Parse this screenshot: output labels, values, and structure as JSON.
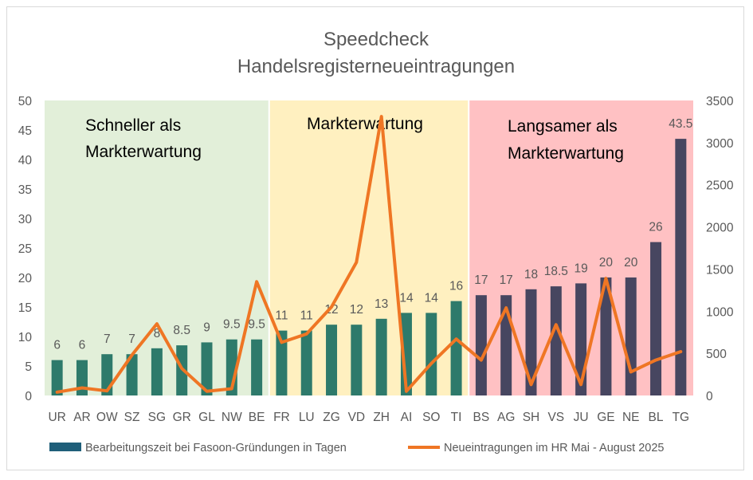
{
  "chart_data": {
    "type": "bar",
    "title": [
      "Speedcheck",
      "Handelsregisterneueintragungen"
    ],
    "categories": [
      "UR",
      "AR",
      "OW",
      "SZ",
      "SG",
      "GR",
      "GL",
      "NW",
      "BE",
      "FR",
      "LU",
      "ZG",
      "VD",
      "ZH",
      "AI",
      "SO",
      "TI",
      "BS",
      "AG",
      "SH",
      "VS",
      "JU",
      "GE",
      "NE",
      "BL",
      "TG"
    ],
    "y_left": {
      "min": 0,
      "max": 50,
      "ticks": [
        0,
        5,
        10,
        15,
        20,
        25,
        30,
        35,
        40,
        45,
        50
      ]
    },
    "y_right": {
      "min": 0,
      "max": 3500,
      "ticks": [
        0,
        500,
        1000,
        1500,
        2000,
        2500,
        3000,
        3500
      ]
    },
    "grid": false,
    "legend_position": "bottom",
    "series": [
      {
        "name": "Bearbeitungszeit bei Fasoon-Gründungen in Tagen",
        "type": "bar",
        "axis": "left",
        "values": [
          6,
          6,
          7,
          7,
          8,
          8.5,
          9,
          9.5,
          9.5,
          11,
          11,
          12,
          12,
          13,
          14,
          14,
          16,
          17,
          17,
          18,
          18.5,
          19,
          20,
          20,
          26,
          43.5
        ],
        "labels": [
          "6",
          "6",
          "7",
          "7",
          "8",
          "8.5",
          "9",
          "9.5",
          "9.5",
          "11",
          "11",
          "12",
          "12",
          "13",
          "14",
          "14",
          "16",
          "17",
          "17",
          "18",
          "18.5",
          "19",
          "20",
          "20",
          "26",
          "43.5"
        ]
      },
      {
        "name": "Neueintragungen im HR Mai - August 2025",
        "type": "line",
        "axis": "right",
        "values": [
          40,
          90,
          55,
          480,
          850,
          320,
          50,
          80,
          1350,
          630,
          730,
          1050,
          1580,
          3310,
          50,
          380,
          670,
          420,
          1040,
          130,
          840,
          130,
          1390,
          280,
          420,
          520
        ]
      }
    ],
    "zones": [
      {
        "label_lines": [
          "Schneller als",
          "Markterwartung"
        ],
        "start_category": "UR",
        "end_category": "BE",
        "color": "#e2efd9"
      },
      {
        "label_lines": [
          "Markterwartung"
        ],
        "start_category": "FR",
        "end_category": "TI",
        "color": "#fff0c0"
      },
      {
        "label_lines": [
          "Langsamer als",
          "Markterwartung"
        ],
        "start_category": "BS",
        "end_category": "TG",
        "color": "#ffc1c3"
      }
    ],
    "colors": {
      "bar_green": "#2e7a6b",
      "bar_dark": "#474660",
      "line": "#ef7624",
      "legend_bar": "#1f5f7a",
      "axis_text": "#595959",
      "title_text": "#595959"
    }
  }
}
